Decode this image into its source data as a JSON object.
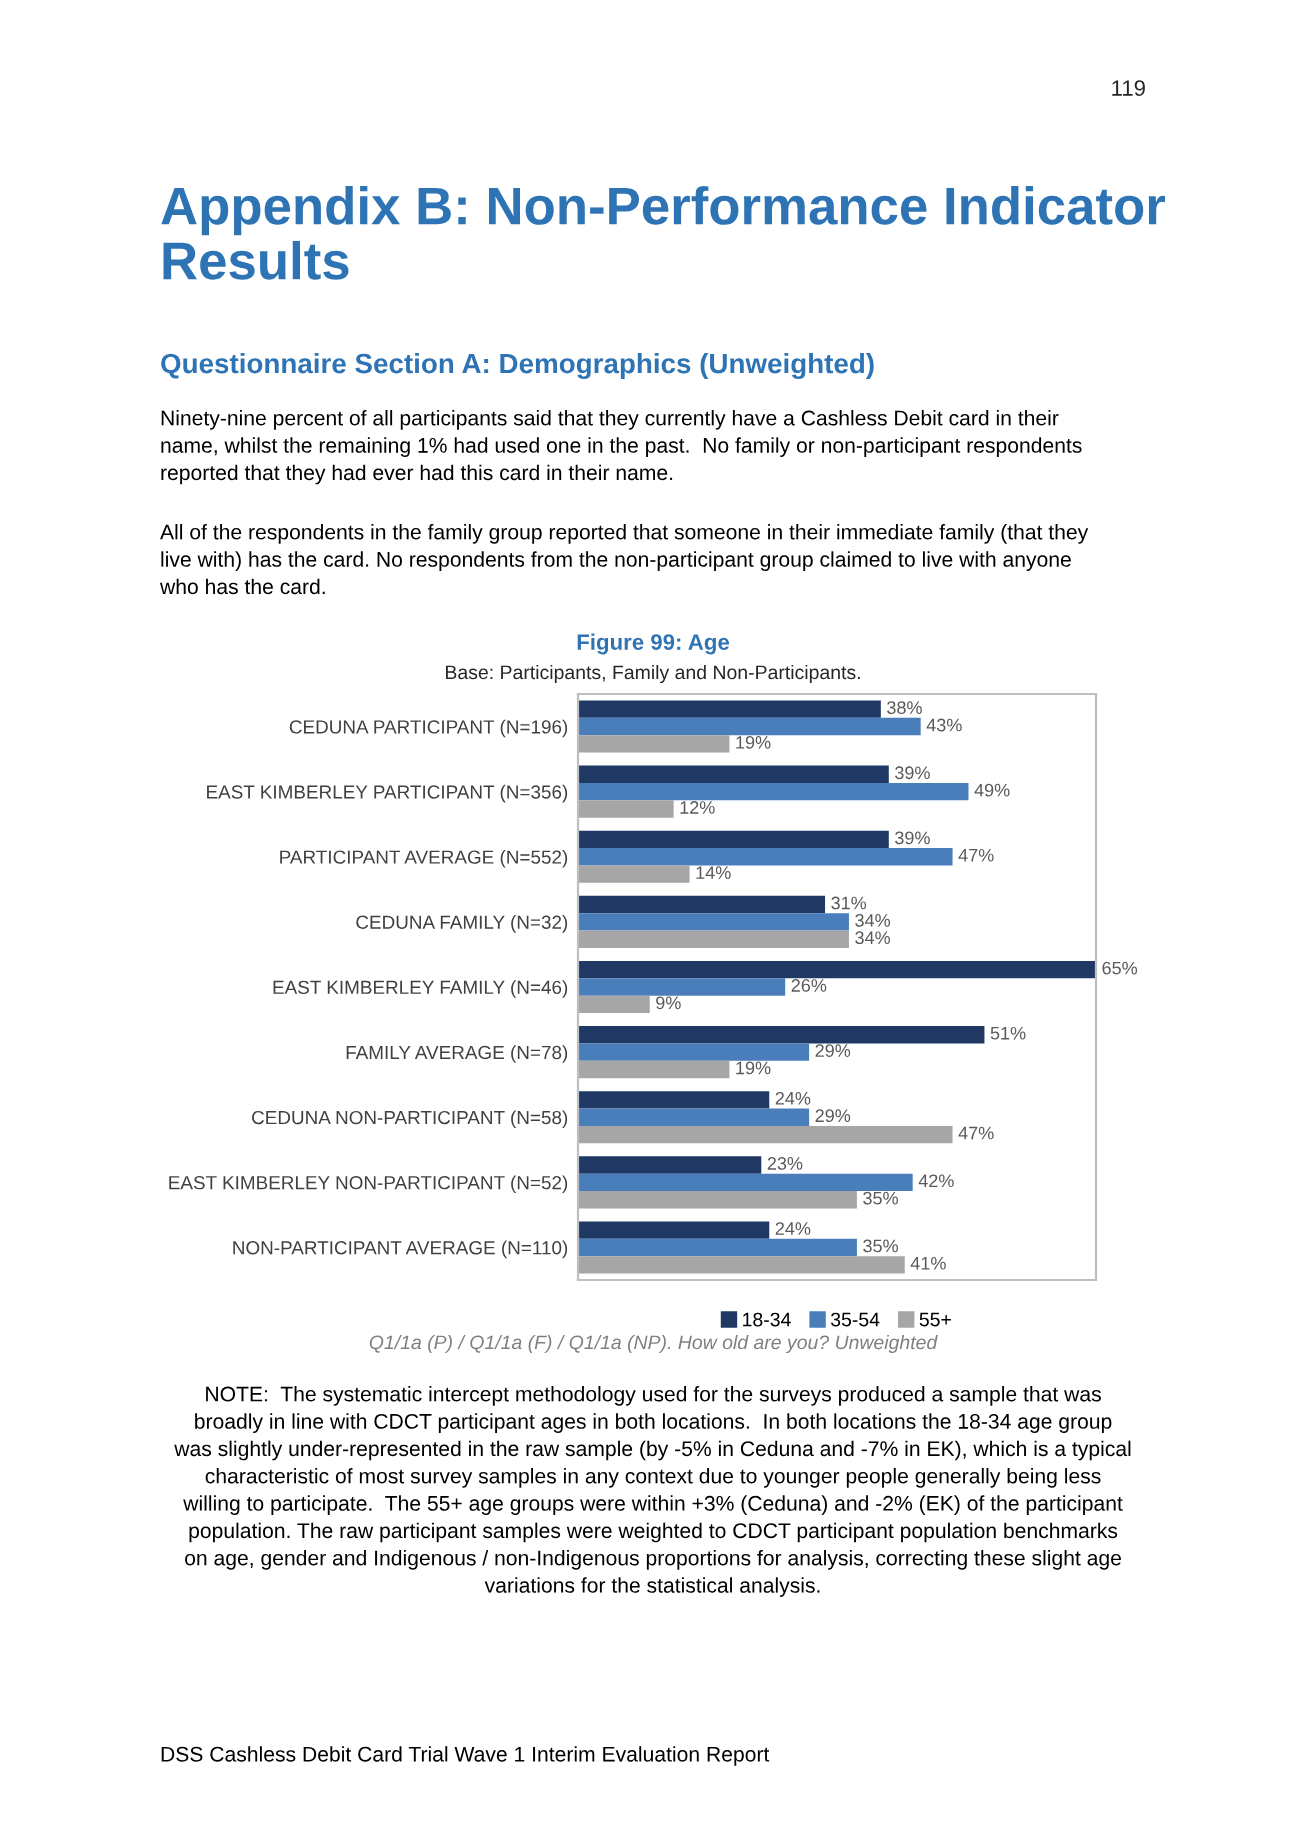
{
  "chart_data": {
    "type": "bar",
    "orientation": "horizontal",
    "title": "Figure 99: Age",
    "subtitle": "Base: Participants, Family and Non-Participants.",
    "categories": [
      "CEDUNA PARTICIPANT (N=196)",
      "EAST KIMBERLEY PARTICIPANT (N=356)",
      "PARTICIPANT AVERAGE (N=552)",
      "CEDUNA FAMILY (N=32)",
      "EAST KIMBERLEY FAMILY (N=46)",
      "FAMILY AVERAGE (N=78)",
      "CEDUNA NON-PARTICIPANT (N=58)",
      "EAST KIMBERLEY NON-PARTICIPANT (N=52)",
      "NON-PARTICIPANT AVERAGE (N=110)"
    ],
    "series": [
      {
        "name": "18-34",
        "color": "#1f3864",
        "values": [
          38,
          39,
          39,
          31,
          65,
          51,
          24,
          23,
          24
        ],
        "value_labels": [
          "38%",
          "39%",
          "39%",
          "31%",
          "65%",
          "51%",
          "24%",
          "23%",
          "24%"
        ]
      },
      {
        "name": "35-54",
        "color": "#4a7ebb",
        "values": [
          43,
          49,
          47,
          34,
          26,
          29,
          29,
          42,
          35
        ],
        "value_labels": [
          "43%",
          "49%",
          "47%",
          "34%",
          "26%",
          "29%",
          "29%",
          "42%",
          "35%"
        ]
      },
      {
        "name": "55+",
        "color": "#a6a6a6",
        "values": [
          19,
          12,
          14,
          34,
          9,
          19,
          47,
          35,
          41
        ],
        "value_labels": [
          "19%",
          "12%",
          "14%",
          "34%",
          "9%",
          "19%",
          "47%",
          "35%",
          "41%"
        ]
      }
    ],
    "legend": "bottom",
    "grid": false,
    "tick_labels": "y",
    "annotations": [
      "119",
      "Appendix B: Non-Performance Indicator\nResults",
      "Questionnaire Section A: Demographics (Unweighted)",
      "Ninety-nine percent of all participants said that they currently have a Cashless Debit card in their\nname, whilst the remaining 1% had used one in the past.  No family or non-participant respondents\nreported that they had ever had this card in their name.",
      "All of the respondents in the family group reported that someone in their immediate family (that they\nlive with) has the card. No respondents from the non-participant group claimed to live with anyone\nwho has the card.",
      "Q1/1a (P) / Q1/1a (F) / Q1/1a (NP). How old are you? Unweighted",
      "NOTE:  The systematic intercept methodology used for the surveys produced a sample that was\nbroadly in line with CDCT participant ages in both locations.  In both locations the 18-34 age group\nwas slightly under-represented in the raw sample (by -5% in Ceduna and -7% in EK), which is a typical\ncharacteristic of most survey samples in any context due to younger people generally being less\nwilling to participate.  The 55+ age groups were within +3% (Ceduna) and -2% (EK) of the participant\npopulation. The raw participant samples were weighted to CDCT participant population benchmarks\non age, gender and Indigenous / non-Indigenous proportions for analysis, correcting these slight age\nvariations for the statistical analysis.",
      "DSS Cashless Debit Card Trial Wave 1 Interim Evaluation Report"
    ]
  }
}
